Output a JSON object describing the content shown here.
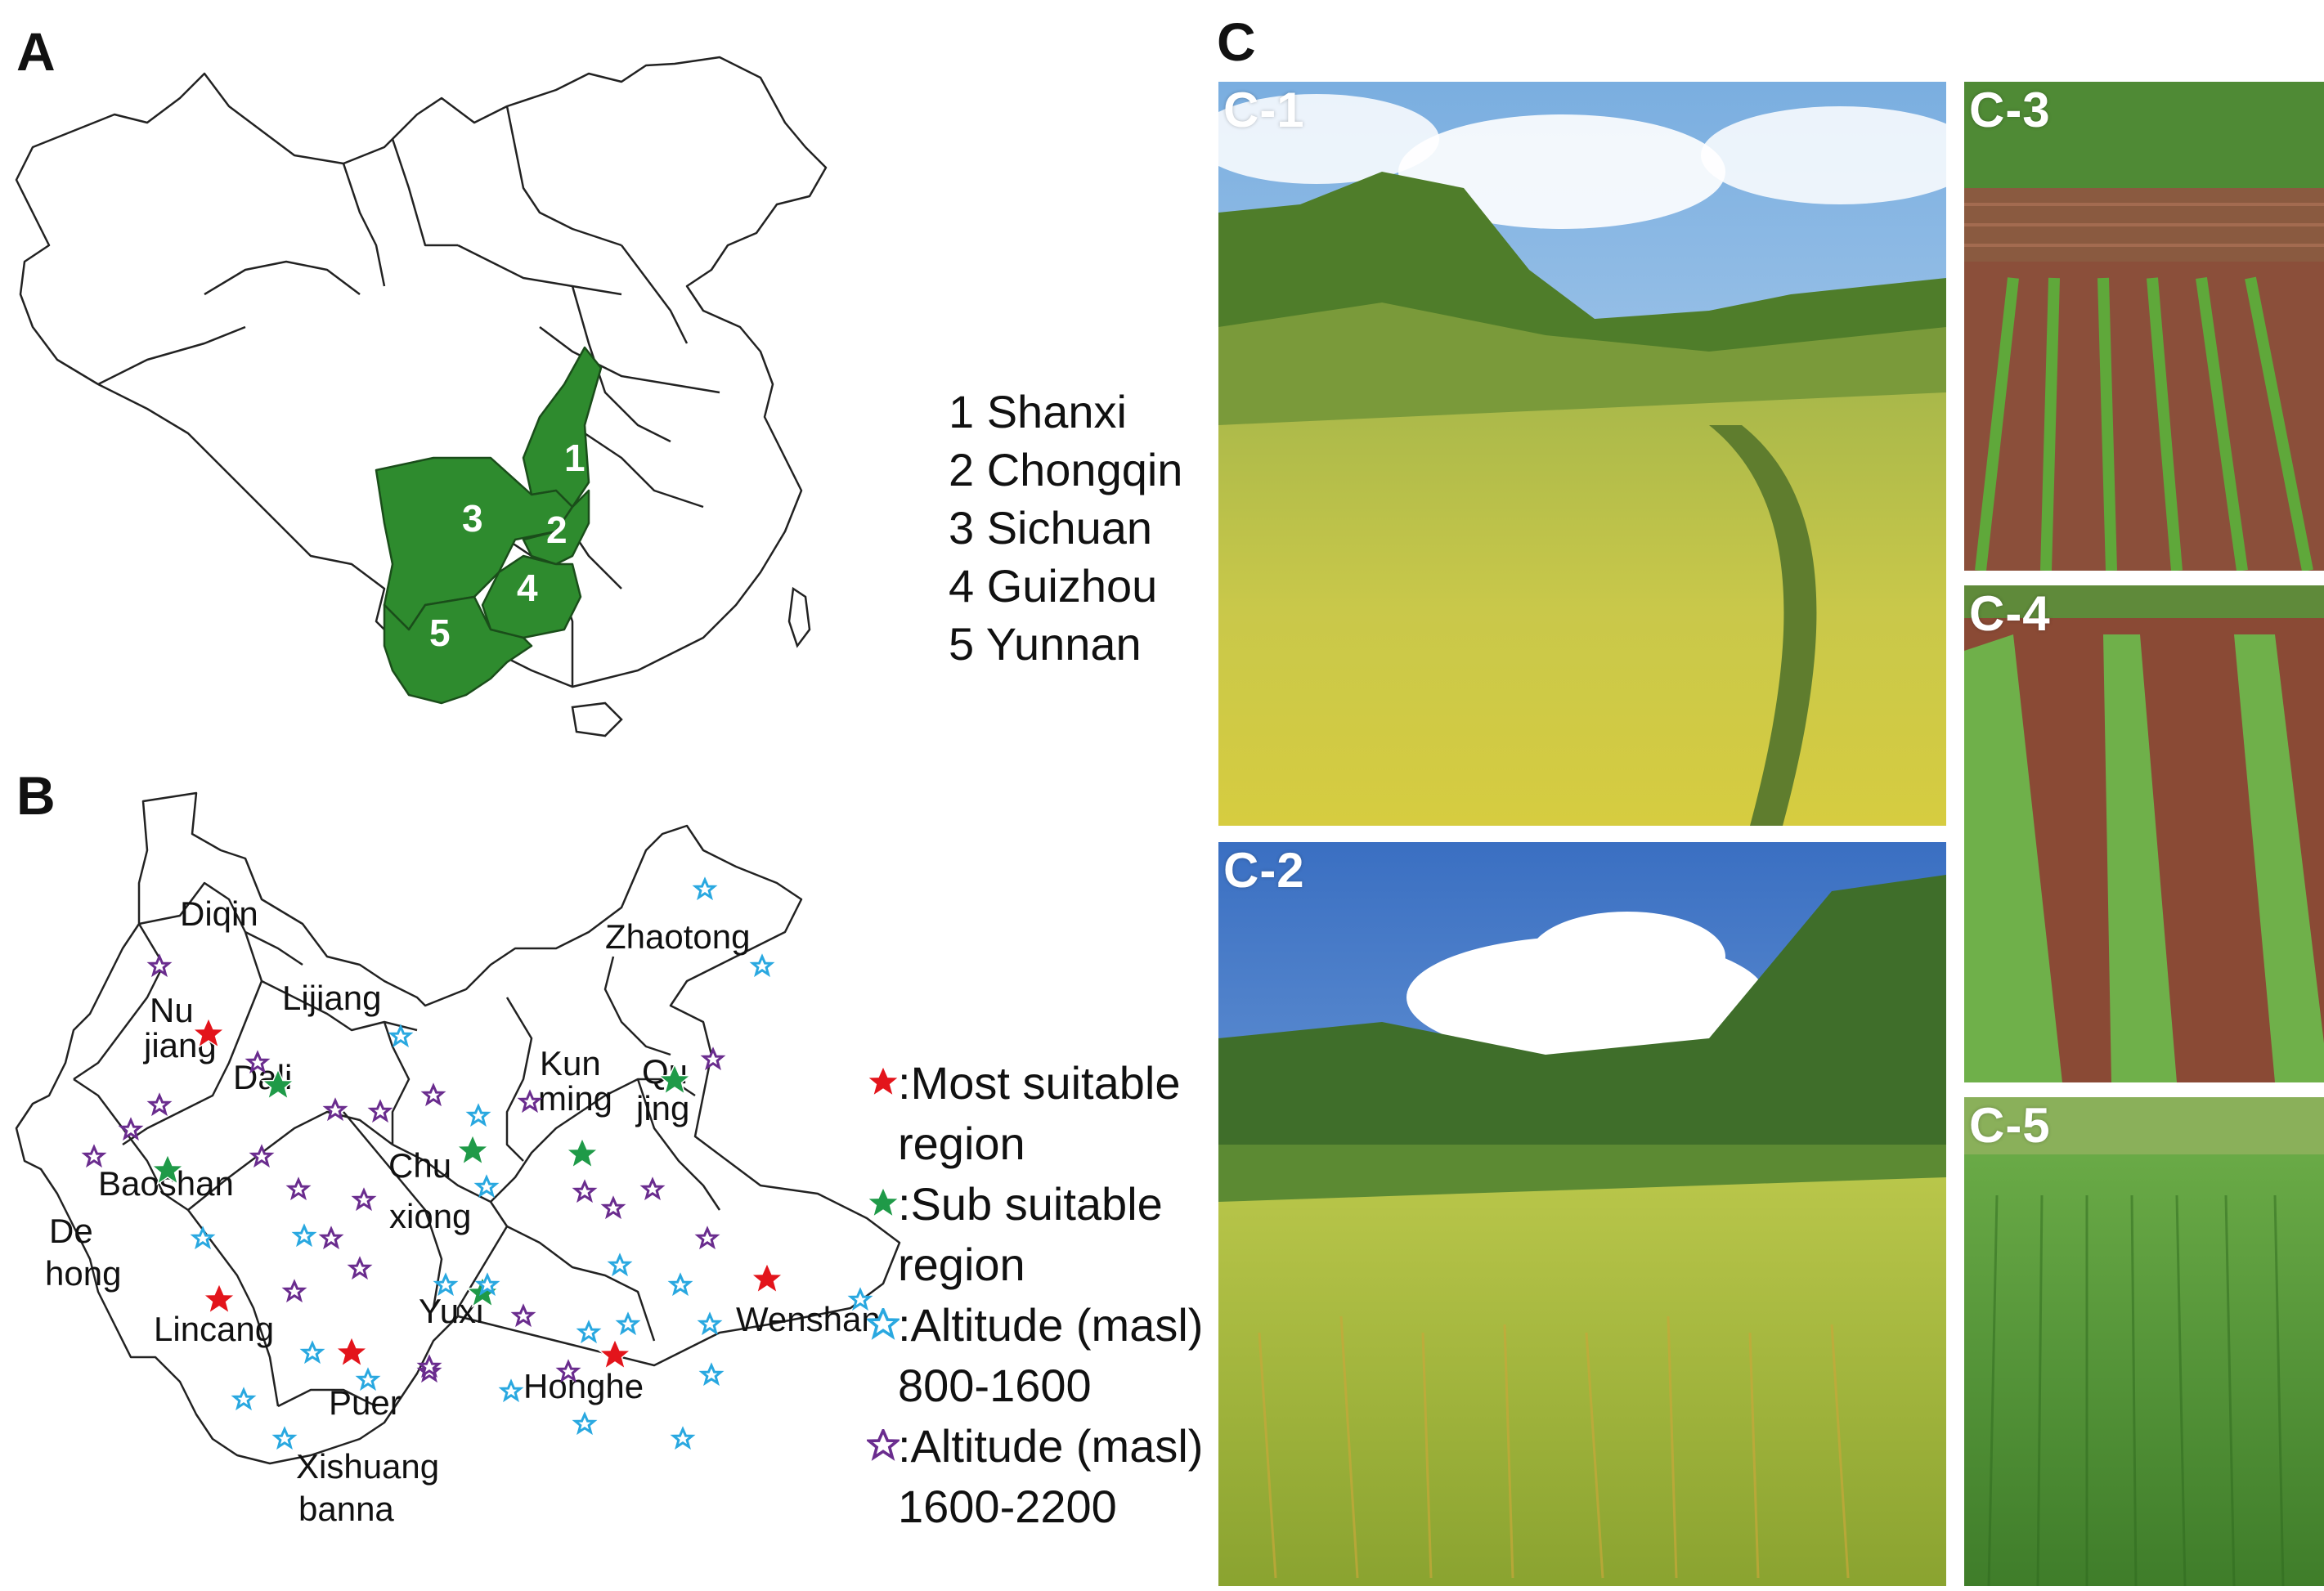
{
  "panels": {
    "a": "A",
    "b": "B",
    "c": "C"
  },
  "panel_a": {
    "highlight_color": "#2e8b2e",
    "province_numbers": [
      "1",
      "2",
      "3",
      "4",
      "5"
    ],
    "legend": [
      "1 Shanxi",
      "2 Chongqin",
      "3 Sichuan",
      "4 Guizhou",
      "5 Yunnan"
    ]
  },
  "panel_b": {
    "labels": {
      "diqin": "Diqin",
      "zhaotong": "Zhaotong",
      "lijiang": "Lijiang",
      "nujiang_1": "Nu",
      "nujiang_2": "jiang",
      "dali": "Dali",
      "kunming_1": "Kun",
      "kunming_2": "ming",
      "qujing_1": "Qu",
      "qujing_2": "jing",
      "chuxiong_1": "Chu",
      "chuxiong_2": "xiong",
      "baoshan": "Baoshan",
      "dehong_1": "De",
      "dehong_2": "hong",
      "lincang": "Lincang",
      "yuxi": "Yuxi",
      "wenshan": "Wenshan",
      "puer": "Puer",
      "honghe": "Honghe",
      "xishuangbanna_1": "Xishuang",
      "xishuangbanna_2": "banna"
    },
    "legend": [
      {
        "color": "#e3141b",
        "line1": ":Most suitable",
        "line2": "region"
      },
      {
        "color": "#1f9a48",
        "line1": ":Sub suitable",
        "line2": "region"
      },
      {
        "color": "#29a8e0",
        "line1": ":Altitude (masl)",
        "line2": "800-1600"
      },
      {
        "color": "#6a2c8e",
        "line1": ":Altitude (masl)",
        "line2": "1600-2200"
      }
    ]
  },
  "panel_c": {
    "photos": [
      "C-1",
      "C-2",
      "C-3",
      "C-4",
      "C-5"
    ]
  }
}
